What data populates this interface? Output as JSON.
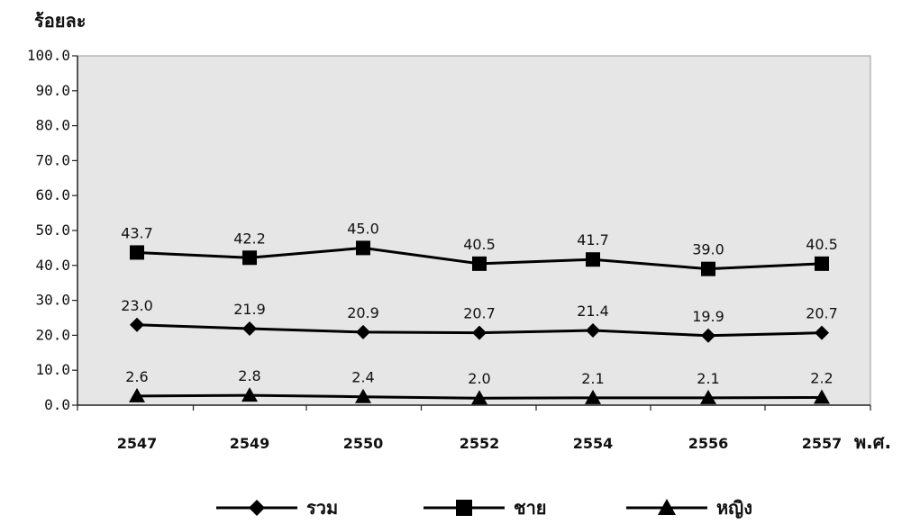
{
  "chart_data": {
    "type": "line",
    "ylabel": "ร้อยละ",
    "xlabel": "พ.ศ.",
    "ylim": [
      0,
      100
    ],
    "yticks": [
      "0.0",
      "10.0",
      "20.0",
      "30.0",
      "40.0",
      "50.0",
      "60.0",
      "70.0",
      "80.0",
      "90.0",
      "100.0"
    ],
    "categories": [
      "2547",
      "2549",
      "2550",
      "2552",
      "2554",
      "2556",
      "2557"
    ],
    "series": [
      {
        "name": "รวม",
        "marker": "diamond",
        "values": [
          23.0,
          21.9,
          20.9,
          20.7,
          21.4,
          19.9,
          20.7
        ],
        "labels": [
          "23.0",
          "21.9",
          "20.9",
          "20.7",
          "21.4",
          "19.9",
          "20.7"
        ]
      },
      {
        "name": "ชาย",
        "marker": "square",
        "values": [
          43.7,
          42.2,
          45.0,
          40.5,
          41.7,
          39.0,
          40.5
        ],
        "labels": [
          "43.7",
          "42.2",
          "45.0",
          "40.5",
          "41.7",
          "39.0",
          "40.5"
        ]
      },
      {
        "name": "หญิง",
        "marker": "triangle",
        "values": [
          2.6,
          2.8,
          2.4,
          2.0,
          2.1,
          2.1,
          2.2
        ],
        "labels": [
          "2.6",
          "2.8",
          "2.4",
          "2.0",
          "2.1",
          "2.1",
          "2.2"
        ]
      }
    ],
    "grid": false,
    "legend_position": "bottom",
    "colors": {
      "line": "#000000",
      "plot_background": "#e4e4e4"
    }
  }
}
